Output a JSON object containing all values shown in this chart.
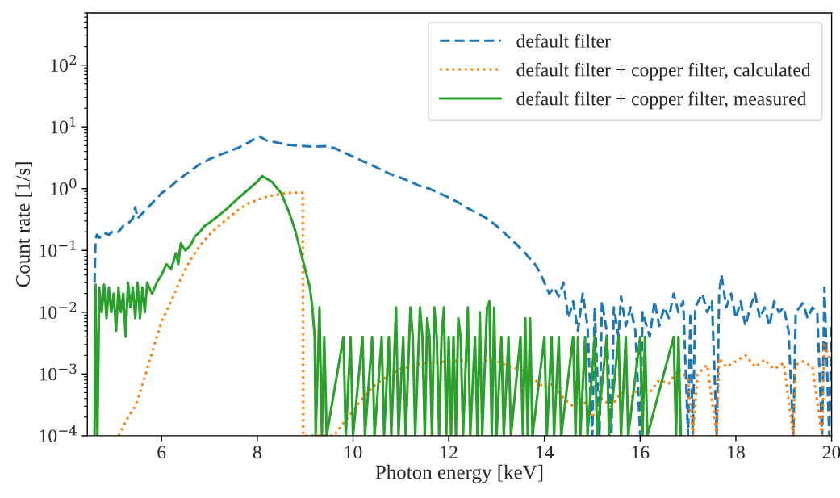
{
  "chart_data": {
    "type": "line",
    "xlabel": "Photon energy [keV]",
    "ylabel": "Count rate [1/s]",
    "log": "y",
    "grid": false,
    "legend": "top right",
    "marker": "none",
    "xlim": [
      4.45,
      20
    ],
    "xticks": [
      6,
      8,
      10,
      12,
      14,
      16,
      18,
      20
    ],
    "ylim": [
      0.0001,
      700
    ],
    "yticks": [
      {
        "value": 0.0001,
        "label": "10$^{−4}$"
      },
      {
        "value": 0.001,
        "label": "10$^{−3}$"
      },
      {
        "value": 0.01,
        "label": "10$^{−2}$"
      },
      {
        "value": 0.1,
        "label": "10$^{−1}$"
      },
      {
        "value": 1,
        "label": "10$^{0}$"
      },
      {
        "value": 10,
        "label": "10$^{1}$"
      },
      {
        "value": 100,
        "label": "10$^{2}$"
      }
    ],
    "series": [
      {
        "name": "default filter",
        "color": "#1f77b4",
        "line_style": "dashed",
        "x": [
          4.6,
          4.62,
          4.65,
          4.7,
          4.8,
          4.9,
          5.0,
          5.1,
          5.2,
          5.3,
          5.4,
          5.45,
          5.5,
          5.6,
          5.7,
          5.8,
          5.9,
          6.0,
          6.1,
          6.2,
          6.3,
          6.4,
          6.5,
          6.6,
          6.7,
          6.8,
          6.9,
          7.0,
          7.2,
          7.4,
          7.6,
          7.8,
          8.0,
          8.05,
          8.2,
          8.4,
          8.6,
          8.8,
          9.0,
          9.2,
          9.4,
          9.6,
          9.8,
          10.0,
          10.2,
          10.4,
          10.6,
          10.8,
          11.0,
          11.2,
          11.4,
          11.6,
          11.8,
          12.0,
          12.2,
          12.4,
          12.6,
          12.8,
          13.0,
          13.2,
          13.4,
          13.6,
          13.8,
          13.9,
          14.0,
          14.1,
          14.2,
          14.3,
          14.4,
          14.5,
          14.6,
          14.7,
          14.8,
          14.9,
          15.0,
          15.05,
          15.15,
          15.2,
          15.3,
          15.4,
          15.45,
          15.55,
          15.6,
          15.7,
          15.8,
          15.9,
          16.0,
          16.05,
          16.2,
          16.3,
          16.4,
          16.5,
          16.6,
          16.7,
          16.8,
          16.9,
          17.0,
          17.05,
          17.1,
          17.15,
          17.3,
          17.4,
          17.5,
          17.6,
          17.65,
          17.7,
          17.8,
          17.9,
          18.0,
          18.1,
          18.2,
          18.3,
          18.4,
          18.5,
          18.6,
          18.7,
          18.8,
          18.9,
          19.0,
          19.1,
          19.2,
          19.25,
          19.4,
          19.5,
          19.6,
          19.7,
          19.8,
          19.85,
          19.95,
          20.0
        ],
        "values": [
          0.03,
          0.15,
          0.18,
          0.16,
          0.19,
          0.18,
          0.21,
          0.2,
          0.25,
          0.27,
          0.33,
          0.5,
          0.33,
          0.4,
          0.48,
          0.58,
          0.7,
          0.85,
          0.95,
          1.1,
          1.3,
          1.5,
          1.7,
          1.9,
          2.2,
          2.5,
          2.7,
          3.0,
          3.5,
          4.0,
          4.6,
          5.5,
          6.8,
          7.0,
          6.0,
          5.6,
          5.2,
          5.0,
          4.9,
          4.8,
          4.9,
          4.6,
          3.9,
          3.3,
          2.8,
          2.4,
          2.0,
          1.7,
          1.5,
          1.3,
          1.1,
          1.0,
          0.85,
          0.72,
          0.6,
          0.48,
          0.4,
          0.33,
          0.25,
          0.18,
          0.13,
          0.09,
          0.06,
          0.045,
          0.03,
          0.02,
          0.025,
          0.018,
          0.03,
          0.008,
          0.015,
          0.005,
          0.02,
          0.006,
          0.0001,
          0.012,
          0.0001,
          0.015,
          0.005,
          0.0001,
          0.012,
          0.004,
          0.018,
          0.006,
          0.012,
          0.005,
          0.0001,
          0.01,
          0.004,
          0.015,
          0.006,
          0.012,
          0.008,
          0.02,
          0.01,
          0.015,
          0.0001,
          0.01,
          0.0001,
          0.012,
          0.02,
          0.01,
          0.015,
          0.0001,
          0.02,
          0.04,
          0.012,
          0.02,
          0.008,
          0.015,
          0.006,
          0.012,
          0.02,
          0.008,
          0.012,
          0.006,
          0.015,
          0.01,
          0.012,
          0.005,
          0.0001,
          0.01,
          0.014,
          0.008,
          0.012,
          0.01,
          0.0001,
          0.025,
          0.0001,
          0.006
        ]
      },
      {
        "name": "default filter + copper filter, calculated",
        "color": "#ff7f0e",
        "line_style": "dotted",
        "x": [
          5.1,
          5.3,
          5.45,
          5.55,
          5.7,
          5.85,
          6.0,
          6.2,
          6.4,
          6.6,
          6.8,
          7.0,
          7.2,
          7.4,
          7.6,
          7.8,
          8.0,
          8.2,
          8.4,
          8.6,
          8.8,
          8.95,
          8.96,
          9.6,
          9.8,
          10.0,
          10.2,
          10.4,
          10.6,
          10.8,
          11.0,
          11.5,
          12.0,
          12.5,
          13.0,
          13.3,
          13.6,
          13.8,
          14.0,
          14.2,
          14.4,
          14.6,
          14.8,
          15.0,
          15.2,
          15.4,
          15.6,
          15.8,
          16.0,
          16.2,
          16.4,
          16.6,
          16.8,
          17.0,
          17.1,
          17.2,
          17.4,
          17.6,
          17.65,
          17.8,
          18.0,
          18.2,
          18.4,
          18.6,
          18.8,
          19.0,
          19.2,
          19.25,
          19.4,
          19.6,
          19.8,
          19.85,
          20.0
        ],
        "values": [
          0.0001,
          0.0002,
          0.0003,
          0.0005,
          0.0012,
          0.003,
          0.007,
          0.015,
          0.035,
          0.07,
          0.12,
          0.18,
          0.25,
          0.34,
          0.45,
          0.57,
          0.66,
          0.74,
          0.8,
          0.85,
          0.86,
          0.86,
          0.0001,
          0.0001,
          0.00016,
          0.00025,
          0.0004,
          0.0006,
          0.0008,
          0.001,
          0.0012,
          0.0015,
          0.0016,
          0.0017,
          0.0016,
          0.0013,
          0.0011,
          0.0008,
          0.0006,
          0.0007,
          0.0004,
          0.0003,
          0.0004,
          0.0002,
          0.0004,
          0.0003,
          0.0005,
          0.0004,
          0.0006,
          0.0005,
          0.0008,
          0.0007,
          0.0012,
          0.0008,
          0.0001,
          0.001,
          0.0014,
          0.0001,
          0.0018,
          0.0013,
          0.0016,
          0.002,
          0.0013,
          0.0017,
          0.0012,
          0.0015,
          0.0001,
          0.0014,
          0.0016,
          0.0013,
          0.0001,
          0.003,
          0.0015
        ]
      },
      {
        "name": "default filter + copper filter, measured",
        "color": "#2ca02c",
        "line_style": "solid",
        "x": [
          4.6,
          4.62,
          4.66,
          4.7,
          4.75,
          4.8,
          4.85,
          4.9,
          4.95,
          5.0,
          5.05,
          5.1,
          5.15,
          5.2,
          5.25,
          5.3,
          5.35,
          5.4,
          5.45,
          5.5,
          5.55,
          5.6,
          5.65,
          5.7,
          5.8,
          5.9,
          6.0,
          6.1,
          6.2,
          6.3,
          6.35,
          6.4,
          6.5,
          6.6,
          6.7,
          6.8,
          6.9,
          7.0,
          7.2,
          7.4,
          7.6,
          7.8,
          8.0,
          8.1,
          8.3,
          8.5,
          8.6,
          8.7,
          8.8,
          8.9,
          9.0,
          9.1,
          9.15,
          9.2,
          9.22,
          9.3,
          9.35,
          9.4,
          9.45,
          9.8,
          9.85,
          9.95,
          10.0,
          10.2,
          10.25,
          10.4,
          10.45,
          10.6,
          10.65,
          10.75,
          10.8,
          10.9,
          10.95,
          11.05,
          11.1,
          11.2,
          11.25,
          11.3,
          11.4,
          11.45,
          11.5,
          11.55,
          11.6,
          11.65,
          11.7,
          11.75,
          11.8,
          11.85,
          11.9,
          11.95,
          12.0,
          12.05,
          12.1,
          12.15,
          12.2,
          12.25,
          12.3,
          12.4,
          12.45,
          12.55,
          12.6,
          12.65,
          12.7,
          12.8,
          12.85,
          12.9,
          12.95,
          13.0,
          13.1,
          13.15,
          13.25,
          13.3,
          13.5,
          13.55,
          13.6,
          13.65,
          13.7,
          13.75,
          14.0,
          14.05,
          14.15,
          14.2,
          14.3,
          14.35,
          14.6,
          14.65,
          14.7,
          14.75,
          14.85,
          14.9,
          15.05,
          15.1,
          15.3,
          15.35,
          15.55,
          15.6,
          15.7,
          15.75,
          16.0,
          16.05,
          16.1,
          16.15,
          16.7,
          16.75,
          16.8,
          16.85
        ],
        "values": [
          0.0001,
          0.028,
          0.0001,
          0.025,
          0.01,
          0.028,
          0.008,
          0.025,
          0.01,
          0.02,
          0.005,
          0.025,
          0.01,
          0.02,
          0.004,
          0.03,
          0.012,
          0.025,
          0.008,
          0.03,
          0.008,
          0.025,
          0.01,
          0.03,
          0.02,
          0.03,
          0.04,
          0.06,
          0.05,
          0.09,
          0.06,
          0.13,
          0.1,
          0.12,
          0.17,
          0.2,
          0.25,
          0.28,
          0.37,
          0.5,
          0.7,
          0.95,
          1.3,
          1.6,
          1.3,
          0.85,
          0.55,
          0.35,
          0.2,
          0.1,
          0.05,
          0.025,
          0.012,
          0.004,
          0.0001,
          0.012,
          0.0001,
          0.004,
          0.0001,
          0.004,
          0.0001,
          0.004,
          0.0001,
          0.004,
          0.0001,
          0.004,
          0.0001,
          0.004,
          0.0001,
          0.004,
          0.0001,
          0.012,
          0.0001,
          0.004,
          0.0001,
          0.012,
          0.004,
          0.0001,
          0.012,
          0.004,
          0.0001,
          0.008,
          0.004,
          0.0001,
          0.012,
          0.004,
          0.0001,
          0.004,
          0.012,
          0.0001,
          0.004,
          0.0001,
          0.004,
          0.0001,
          0.008,
          0.004,
          0.0001,
          0.012,
          0.0001,
          0.004,
          0.0001,
          0.01,
          0.0001,
          0.012,
          0.015,
          0.0001,
          0.012,
          0.0001,
          0.004,
          0.0001,
          0.004,
          0.0001,
          0.004,
          0.0001,
          0.008,
          0.0001,
          0.008,
          0.0001,
          0.004,
          0.0001,
          0.004,
          0.0001,
          0.004,
          0.0001,
          0.004,
          0.0001,
          0.004,
          0.0001,
          0.004,
          0.0001,
          0.004,
          0.0001,
          0.004,
          0.0001,
          0.004,
          0.0001,
          0.004,
          0.0001,
          0.004,
          0.0001,
          0.004,
          0.0001,
          0.004,
          0.0001,
          0.004,
          0.0001
        ]
      }
    ]
  }
}
